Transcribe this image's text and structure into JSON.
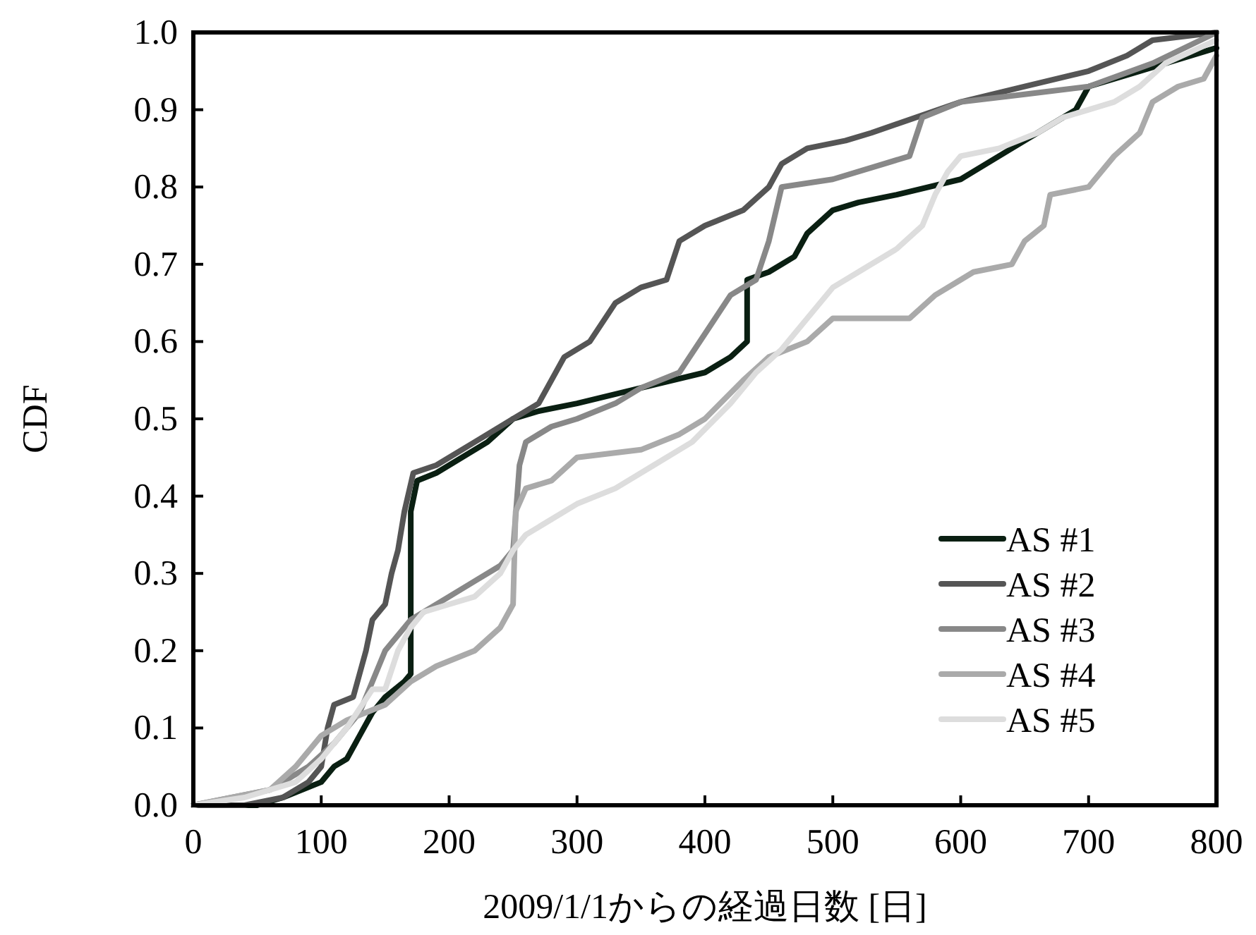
{
  "chart_data": {
    "type": "line",
    "xlabel": "2009/1/1からの経過日数 [日]",
    "ylabel": "CDF",
    "xlim": [
      0,
      800
    ],
    "ylim": [
      0,
      1
    ],
    "xticks": [
      0,
      100,
      200,
      300,
      400,
      500,
      600,
      700,
      800
    ],
    "yticks": [
      {
        "value": 0,
        "label": "0.0"
      },
      0.1,
      0.2,
      0.3,
      0.4,
      0.5,
      0.6,
      0.7,
      0.8,
      0.9,
      {
        "value": 1,
        "label": "1.0"
      }
    ],
    "legend": "bottom right",
    "series": [
      {
        "name": "AS #1",
        "color": "#0a1f12",
        "x": [
          0,
          50,
          70,
          100,
          110,
          120,
          130,
          140,
          150,
          165,
          170,
          170,
          175,
          190,
          200,
          230,
          250,
          270,
          300,
          350,
          400,
          420,
          433,
          433,
          450,
          470,
          480,
          500,
          520,
          550,
          600,
          640,
          670,
          690,
          700,
          740,
          780,
          800
        ],
        "values": [
          0,
          0,
          0.01,
          0.03,
          0.05,
          0.06,
          0.09,
          0.12,
          0.14,
          0.16,
          0.17,
          0.38,
          0.42,
          0.43,
          0.44,
          0.47,
          0.5,
          0.51,
          0.52,
          0.54,
          0.56,
          0.58,
          0.6,
          0.68,
          0.69,
          0.71,
          0.74,
          0.77,
          0.78,
          0.79,
          0.81,
          0.85,
          0.88,
          0.9,
          0.93,
          0.95,
          0.97,
          0.98
        ]
      },
      {
        "name": "AS #2",
        "color": "#555555",
        "x": [
          0,
          40,
          70,
          90,
          100,
          105,
          110,
          125,
          135,
          140,
          150,
          155,
          160,
          165,
          172,
          190,
          220,
          250,
          270,
          290,
          310,
          330,
          350,
          370,
          380,
          400,
          430,
          450,
          460,
          480,
          510,
          530,
          600,
          650,
          700,
          730,
          750,
          800
        ],
        "values": [
          0,
          0,
          0.01,
          0.03,
          0.05,
          0.1,
          0.13,
          0.14,
          0.2,
          0.24,
          0.26,
          0.3,
          0.33,
          0.38,
          0.43,
          0.44,
          0.47,
          0.5,
          0.52,
          0.58,
          0.6,
          0.65,
          0.67,
          0.68,
          0.73,
          0.75,
          0.77,
          0.8,
          0.83,
          0.85,
          0.86,
          0.87,
          0.91,
          0.93,
          0.95,
          0.97,
          0.99,
          1.0
        ]
      },
      {
        "name": "AS #3",
        "color": "#888888",
        "x": [
          0,
          30,
          60,
          90,
          110,
          130,
          150,
          170,
          200,
          220,
          240,
          250,
          255,
          260,
          280,
          300,
          330,
          350,
          380,
          400,
          420,
          440,
          450,
          460,
          500,
          540,
          560,
          570,
          600,
          650,
          700,
          750,
          800
        ],
        "values": [
          0,
          0.01,
          0.02,
          0.05,
          0.08,
          0.12,
          0.2,
          0.24,
          0.27,
          0.29,
          0.31,
          0.33,
          0.44,
          0.47,
          0.49,
          0.5,
          0.52,
          0.54,
          0.56,
          0.61,
          0.66,
          0.68,
          0.73,
          0.8,
          0.81,
          0.83,
          0.84,
          0.89,
          0.91,
          0.92,
          0.93,
          0.96,
          1.0
        ]
      },
      {
        "name": "AS #4",
        "color": "#aaaaaa",
        "x": [
          0,
          30,
          60,
          80,
          100,
          120,
          150,
          170,
          190,
          220,
          240,
          250,
          252,
          260,
          280,
          300,
          350,
          380,
          400,
          430,
          450,
          480,
          500,
          560,
          580,
          600,
          610,
          640,
          650,
          665,
          670,
          700,
          720,
          740,
          750,
          770,
          790,
          800
        ],
        "values": [
          0,
          0.01,
          0.02,
          0.05,
          0.09,
          0.11,
          0.13,
          0.16,
          0.18,
          0.2,
          0.23,
          0.26,
          0.38,
          0.41,
          0.42,
          0.45,
          0.46,
          0.48,
          0.5,
          0.55,
          0.58,
          0.6,
          0.63,
          0.63,
          0.66,
          0.68,
          0.69,
          0.7,
          0.73,
          0.75,
          0.79,
          0.8,
          0.84,
          0.87,
          0.91,
          0.93,
          0.94,
          0.97
        ]
      },
      {
        "name": "AS #5",
        "color": "#dddddd",
        "x": [
          0,
          40,
          80,
          100,
          120,
          140,
          150,
          160,
          170,
          180,
          200,
          220,
          240,
          250,
          260,
          280,
          300,
          330,
          360,
          390,
          420,
          440,
          460,
          480,
          500,
          520,
          550,
          570,
          580,
          590,
          600,
          630,
          660,
          680,
          700,
          720,
          740,
          760,
          800
        ],
        "values": [
          0,
          0.01,
          0.03,
          0.06,
          0.1,
          0.15,
          0.15,
          0.2,
          0.23,
          0.25,
          0.26,
          0.27,
          0.3,
          0.33,
          0.35,
          0.37,
          0.39,
          0.41,
          0.44,
          0.47,
          0.52,
          0.56,
          0.59,
          0.63,
          0.67,
          0.69,
          0.72,
          0.75,
          0.79,
          0.82,
          0.84,
          0.85,
          0.87,
          0.89,
          0.9,
          0.91,
          0.93,
          0.96,
          0.99
        ]
      }
    ]
  }
}
